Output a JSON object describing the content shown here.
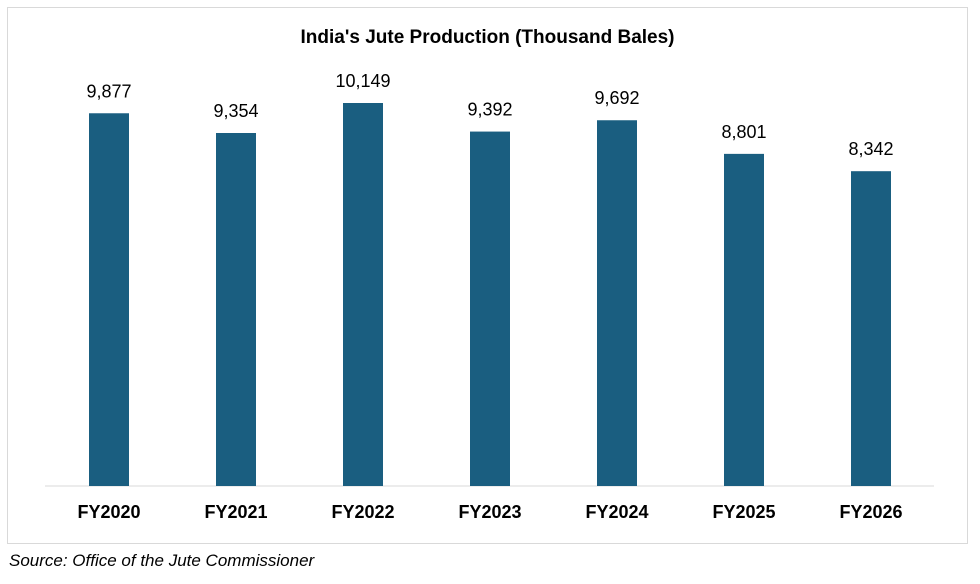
{
  "chart_data": {
    "type": "bar",
    "title": "India's Jute Production (Thousand Bales)",
    "xlabel": "",
    "ylabel": "",
    "categories": [
      "FY2020",
      "FY2021",
      "FY2022",
      "FY2023",
      "FY2024",
      "FY2025",
      "FY2026"
    ],
    "values": [
      9877,
      9354,
      10149,
      9392,
      9692,
      8801,
      8342
    ],
    "data_labels": [
      "9,877",
      "9,354",
      "10,149",
      "9,392",
      "9,692",
      "8,801",
      "8,342"
    ],
    "ylim": [
      0,
      10149
    ],
    "grid": false,
    "legend": "none",
    "bar_color": "#1a5e80"
  },
  "source": "Source: Office of the Jute Commissioner"
}
